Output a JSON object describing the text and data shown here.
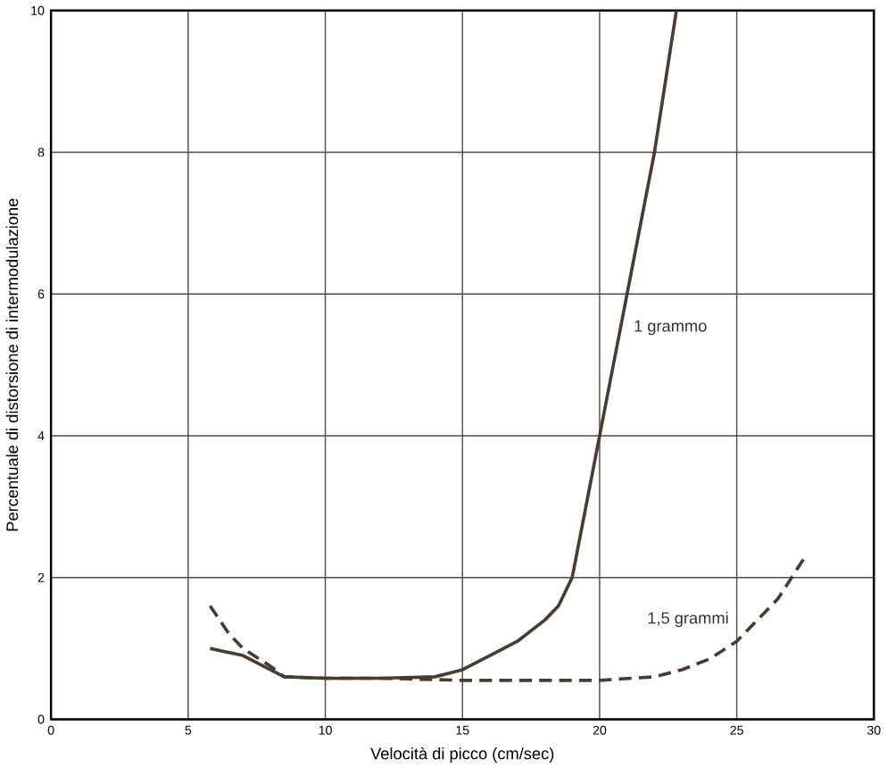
{
  "chart_data": {
    "type": "line",
    "xlabel": "Velocità di picco (cm/sec)",
    "ylabel": "Percentuale di distorsione di intermodulazione",
    "xlim": [
      0,
      30
    ],
    "ylim": [
      0,
      10
    ],
    "xticks": [
      0,
      5,
      10,
      15,
      20,
      25,
      30
    ],
    "yticks": [
      0,
      2,
      4,
      6,
      8,
      10
    ],
    "grid": true,
    "legend": false,
    "marker": "none",
    "series": [
      {
        "name": "1 grammo",
        "color": "#4a3b30",
        "line_style": "solid",
        "x": [
          5.8,
          7,
          8.5,
          10,
          12,
          14,
          15,
          16,
          17,
          18,
          18.5,
          19,
          19.5,
          20,
          21,
          22,
          22.8
        ],
        "values": [
          1.0,
          0.9,
          0.6,
          0.58,
          0.58,
          0.6,
          0.7,
          0.9,
          1.1,
          1.4,
          1.6,
          2.0,
          3.0,
          4.0,
          6.0,
          8.0,
          10.0
        ]
      },
      {
        "name": "1,5 grammi",
        "color": "#4a3b30",
        "line_style": "dashed",
        "x": [
          5.8,
          6.5,
          7,
          8,
          8.5,
          10,
          12,
          15,
          18,
          20,
          22,
          23,
          24,
          25,
          26,
          26.5,
          27.5
        ],
        "values": [
          1.6,
          1.2,
          1.0,
          0.75,
          0.6,
          0.58,
          0.58,
          0.55,
          0.55,
          0.55,
          0.6,
          0.7,
          0.85,
          1.1,
          1.5,
          1.7,
          2.3
        ]
      }
    ]
  }
}
